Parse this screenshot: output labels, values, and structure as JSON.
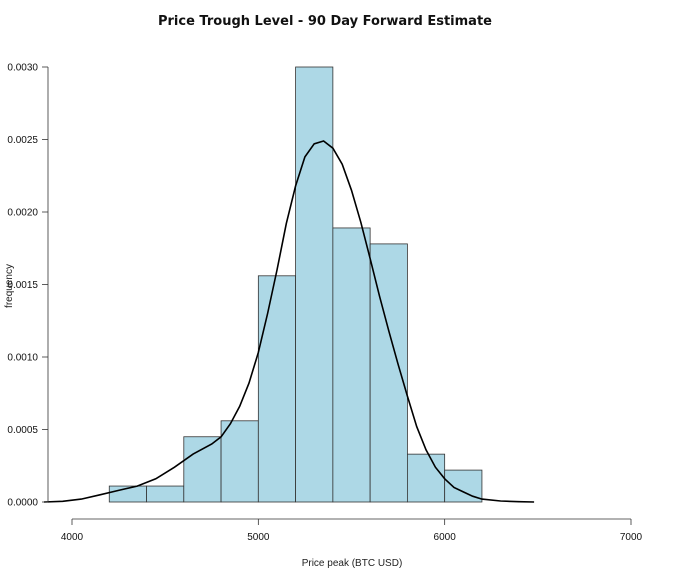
{
  "chart_data": {
    "type": "bar",
    "title": "Price Trough Level - 90 Day Forward Estimate",
    "xlabel": "Price peak (BTC USD)",
    "ylabel": "frequency",
    "xlim": [
      4000,
      7000
    ],
    "ylim": [
      0,
      0.003
    ],
    "x_ticks": [
      "4000",
      "5000",
      "6000",
      "7000"
    ],
    "y_ticks": [
      "0.0000",
      "0.0005",
      "0.0010",
      "0.0015",
      "0.0020",
      "0.0025",
      "0.0030"
    ],
    "bins": [
      {
        "start": 4200,
        "end": 4400,
        "value": 0.00011
      },
      {
        "start": 4400,
        "end": 4600,
        "value": 0.00011
      },
      {
        "start": 4600,
        "end": 4800,
        "value": 0.00045
      },
      {
        "start": 4800,
        "end": 5000,
        "value": 0.00056
      },
      {
        "start": 5000,
        "end": 5200,
        "value": 0.00156
      },
      {
        "start": 5200,
        "end": 5400,
        "value": 0.003
      },
      {
        "start": 5400,
        "end": 5600,
        "value": 0.00189
      },
      {
        "start": 5600,
        "end": 5800,
        "value": 0.00178
      },
      {
        "start": 5800,
        "end": 6000,
        "value": 0.00033
      },
      {
        "start": 6000,
        "end": 6200,
        "value": 0.00022
      }
    ],
    "density_curve": [
      [
        3850,
        0.0
      ],
      [
        3950,
        5e-06
      ],
      [
        4050,
        2e-05
      ],
      [
        4150,
        5e-05
      ],
      [
        4250,
        8e-05
      ],
      [
        4350,
        0.00011
      ],
      [
        4450,
        0.00016
      ],
      [
        4550,
        0.00024
      ],
      [
        4650,
        0.00033
      ],
      [
        4750,
        0.0004
      ],
      [
        4800,
        0.00045
      ],
      [
        4850,
        0.00054
      ],
      [
        4900,
        0.00066
      ],
      [
        4950,
        0.00082
      ],
      [
        5000,
        0.00103
      ],
      [
        5050,
        0.0013
      ],
      [
        5100,
        0.0016
      ],
      [
        5150,
        0.00192
      ],
      [
        5200,
        0.00218
      ],
      [
        5250,
        0.00238
      ],
      [
        5300,
        0.00247
      ],
      [
        5350,
        0.00249
      ],
      [
        5400,
        0.00244
      ],
      [
        5450,
        0.00233
      ],
      [
        5500,
        0.00215
      ],
      [
        5550,
        0.00193
      ],
      [
        5600,
        0.00168
      ],
      [
        5650,
        0.00142
      ],
      [
        5700,
        0.00118
      ],
      [
        5750,
        0.00095
      ],
      [
        5800,
        0.00073
      ],
      [
        5850,
        0.00052
      ],
      [
        5900,
        0.00036
      ],
      [
        5950,
        0.00024
      ],
      [
        6000,
        0.00016
      ],
      [
        6050,
        0.0001
      ],
      [
        6100,
        7e-05
      ],
      [
        6150,
        4e-05
      ],
      [
        6200,
        2e-05
      ],
      [
        6300,
        7e-06
      ],
      [
        6400,
        2e-06
      ],
      [
        6480,
        0.0
      ]
    ],
    "colors": {
      "bar_fill": "#add8e6",
      "bar_stroke": "#333333",
      "curve": "#000000"
    },
    "grid": false,
    "legend": "none"
  }
}
